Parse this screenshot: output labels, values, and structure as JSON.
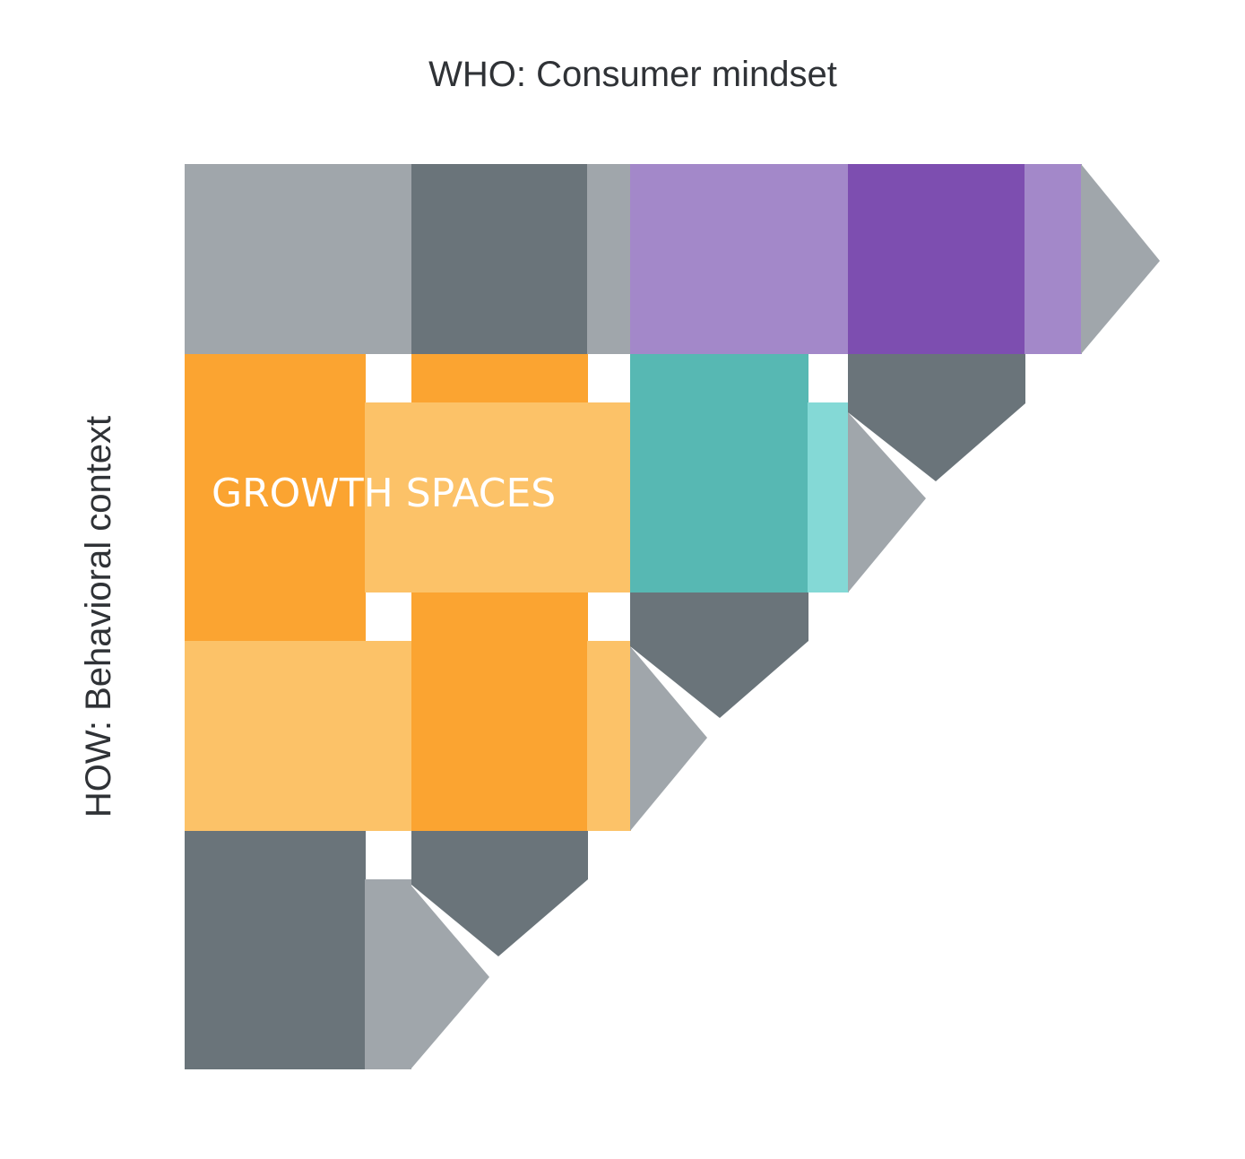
{
  "title": "WHO: Consumer mindset",
  "side_title": "HOW: Behavioral context",
  "growth_label": "GROWTH SPACES",
  "colors": {
    "gray_light": "#a0a6ab",
    "gray_dark": "#6a747a",
    "purple_light": "#a388c9",
    "purple_dark": "#7d4eb0",
    "orange_dark": "#fba431",
    "orange_light": "#fcc268",
    "teal_dark": "#57b8b3",
    "teal_light": "#84d9d6",
    "white": "#ffffff"
  }
}
